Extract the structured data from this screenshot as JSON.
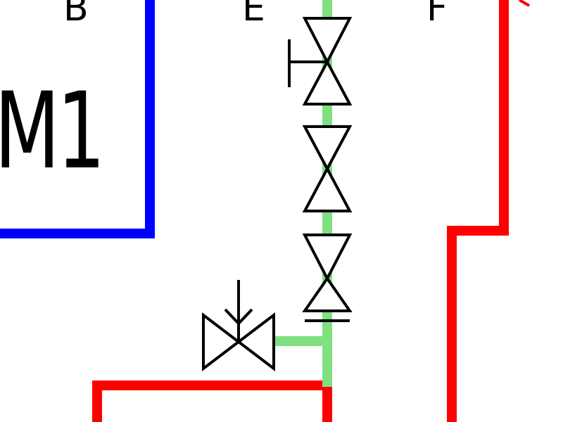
{
  "labels": {
    "b": "B",
    "e": "E",
    "f": "F",
    "m1": "M1"
  },
  "colors": {
    "blue_line": "#0000ff",
    "red_line": "#ff0000",
    "green_line": "#80e080",
    "symbol_stroke": "#000000",
    "background": "#ffffff"
  },
  "symbols": [
    "hand-valve-icon",
    "valve-icon",
    "check-valve-icon",
    "solenoid-valve-icon"
  ]
}
